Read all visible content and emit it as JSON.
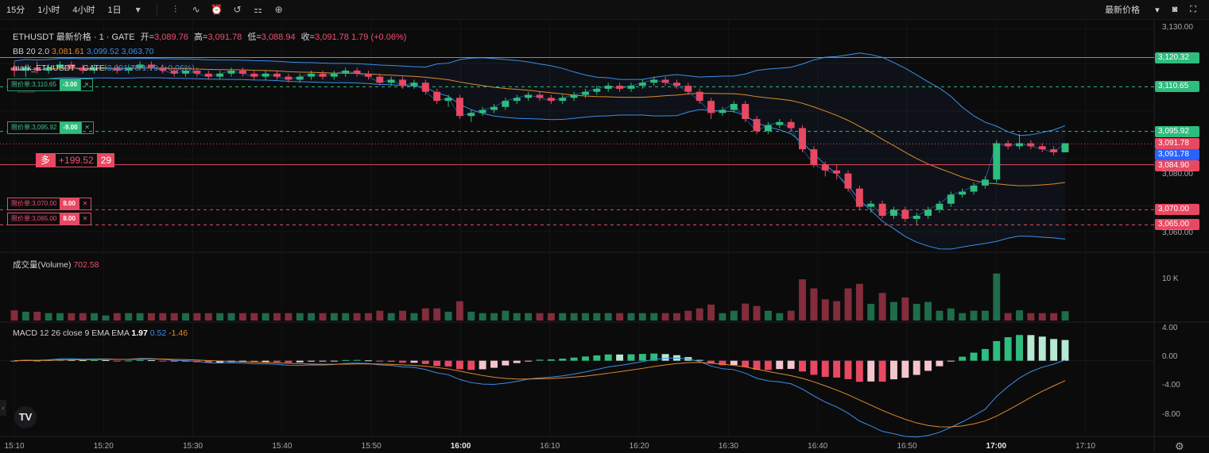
{
  "toolbar": {
    "timeframes": [
      "15分",
      "1小时",
      "4小时",
      "1日"
    ],
    "dropdown_icon": "chevron-down-icon",
    "tools": [
      "indicator-icon",
      "chart-style-icon",
      "alert-icon",
      "replay-icon",
      "compare-icon",
      "add-icon"
    ],
    "right": {
      "price_type": "最新价格",
      "camera": "camera-icon",
      "fullscreen": "fullscreen-icon"
    }
  },
  "legend": {
    "symbol": "ETHUSDT 最新价格 · 1 · GATE",
    "open_label": "开=",
    "open": "3,089.76",
    "high_label": "高=",
    "high": "3,091.78",
    "low_label": "低=",
    "low": "3,088.94",
    "close_label": "收=",
    "close": "3,091.78",
    "change": "1.79 (+0.06%)",
    "bb_label": "BB 20 2.0",
    "bb_mid": "3,081.61",
    "bb_upper": "3,099.52",
    "bb_lower": "3,063.70",
    "mark_label": "mark_ETHUSDT · GATE",
    "mark_value": "3,091.78",
    "mark_change": "1.79 (+0.06%)",
    "volume_label": "成交量(Volume)",
    "volume_value": "702.58",
    "macd_label": "MACD 12 26 close 9 EMA EMA",
    "macd_hist": "1.97",
    "macd_line": "0.52",
    "macd_signal": "-1.46"
  },
  "orders": [
    {
      "label": "限价单:3,110.65",
      "qty": "-3.00",
      "price": 3110.65,
      "color": "green"
    },
    {
      "label": "限价单:3,095.92",
      "qty": "-9.00",
      "price": 3095.92,
      "color": "green"
    },
    {
      "label": "限价单:3,070.00",
      "qty": "8.00",
      "price": 3070.0,
      "color": "red"
    },
    {
      "label": "限价单:3,065.00",
      "qty": "8.00",
      "price": 3065.0,
      "color": "red"
    }
  ],
  "position": {
    "side": "多",
    "pnl": "+199.52",
    "count": "29",
    "price": 3084.9
  },
  "price_labels": [
    {
      "text": "3,120.32",
      "price": 3120.32,
      "color": "#2ebd7e"
    },
    {
      "text": "3,110.65",
      "price": 3110.65,
      "color": "#2ebd7e"
    },
    {
      "text": "3,095.92",
      "price": 3095.92,
      "color": "#2ebd7e"
    },
    {
      "text": "3,091.78",
      "price": 3091.78,
      "color": "#e84862"
    },
    {
      "text": "3,091.78",
      "price": 3091.78,
      "color": "#2962ff"
    },
    {
      "text": "3,084.90",
      "price": 3084.9,
      "color": "#e84862"
    },
    {
      "text": "3,070.00",
      "price": 3070.0,
      "color": "#e84862"
    },
    {
      "text": "3,065.00",
      "price": 3065.0,
      "color": "#e84862"
    }
  ],
  "price_axis": [
    "3,130.00",
    "3,080.00",
    "3,060.00"
  ],
  "volume_axis": "10 K",
  "macd_axis": [
    "4.00",
    "0.00",
    "-4.00",
    "-8.00"
  ],
  "time_axis": [
    {
      "t": "15:10",
      "bold": false
    },
    {
      "t": "15:20",
      "bold": false
    },
    {
      "t": "15:30",
      "bold": false
    },
    {
      "t": "15:40",
      "bold": false
    },
    {
      "t": "15:50",
      "bold": false
    },
    {
      "t": "16:00",
      "bold": true
    },
    {
      "t": "16:10",
      "bold": false
    },
    {
      "t": "16:20",
      "bold": false
    },
    {
      "t": "16:30",
      "bold": false
    },
    {
      "t": "16:40",
      "bold": false
    },
    {
      "t": "16:50",
      "bold": false
    },
    {
      "t": "17:00",
      "bold": true
    },
    {
      "t": "17:10",
      "bold": false
    }
  ],
  "logo": "TV",
  "colors": {
    "up": "#2ebd7e",
    "down": "#e84862",
    "bb_mid": "#e08a2c",
    "bb_band": "#3c8ee8",
    "bg": "#0b0b0c"
  },
  "chart_data": {
    "type": "candlestick",
    "start_time": "15:10",
    "interval_min": 1,
    "y_range": [
      3057,
      3132
    ],
    "ohlc": [
      [
        3117,
        3119,
        3114,
        3116
      ],
      [
        3116,
        3118,
        3114,
        3117
      ],
      [
        3117,
        3119,
        3115,
        3116
      ],
      [
        3116,
        3118,
        3115,
        3117
      ],
      [
        3117,
        3119,
        3116,
        3118
      ],
      [
        3118,
        3119,
        3116,
        3117
      ],
      [
        3117,
        3118,
        3115,
        3116
      ],
      [
        3116,
        3118,
        3115,
        3117
      ],
      [
        3117,
        3118,
        3116,
        3117
      ],
      [
        3117,
        3118,
        3115,
        3116
      ],
      [
        3116,
        3118,
        3115,
        3117
      ],
      [
        3117,
        3119,
        3116,
        3118
      ],
      [
        3118,
        3119,
        3116,
        3117
      ],
      [
        3117,
        3118,
        3115,
        3116
      ],
      [
        3116,
        3117,
        3114,
        3115
      ],
      [
        3115,
        3117,
        3114,
        3116
      ],
      [
        3116,
        3117,
        3114,
        3115
      ],
      [
        3115,
        3116,
        3113,
        3114
      ],
      [
        3114,
        3116,
        3113,
        3115
      ],
      [
        3115,
        3117,
        3114,
        3116
      ],
      [
        3116,
        3117,
        3114,
        3115
      ],
      [
        3115,
        3116,
        3113,
        3114
      ],
      [
        3114,
        3116,
        3113,
        3115
      ],
      [
        3115,
        3116,
        3113,
        3114
      ],
      [
        3114,
        3115,
        3112,
        3113
      ],
      [
        3113,
        3115,
        3112,
        3114
      ],
      [
        3114,
        3116,
        3113,
        3115
      ],
      [
        3115,
        3116,
        3113,
        3114
      ],
      [
        3114,
        3116,
        3113,
        3115
      ],
      [
        3115,
        3117,
        3114,
        3116
      ],
      [
        3116,
        3117,
        3114,
        3115
      ],
      [
        3115,
        3116,
        3113,
        3114
      ],
      [
        3114,
        3115,
        3111,
        3112
      ],
      [
        3112,
        3114,
        3111,
        3113
      ],
      [
        3113,
        3114,
        3110,
        3111
      ],
      [
        3111,
        3113,
        3110,
        3112
      ],
      [
        3112,
        3113,
        3108,
        3109
      ],
      [
        3109,
        3110,
        3105,
        3106
      ],
      [
        3106,
        3108,
        3104,
        3107
      ],
      [
        3107,
        3108,
        3100,
        3101
      ],
      [
        3101,
        3103,
        3099,
        3102
      ],
      [
        3102,
        3104,
        3101,
        3103
      ],
      [
        3103,
        3105,
        3102,
        3104
      ],
      [
        3104,
        3107,
        3103,
        3106
      ],
      [
        3106,
        3108,
        3105,
        3107
      ],
      [
        3107,
        3109,
        3106,
        3108
      ],
      [
        3108,
        3109,
        3106,
        3107
      ],
      [
        3107,
        3108,
        3105,
        3106
      ],
      [
        3106,
        3108,
        3105,
        3107
      ],
      [
        3107,
        3109,
        3106,
        3108
      ],
      [
        3108,
        3110,
        3107,
        3109
      ],
      [
        3109,
        3111,
        3108,
        3110
      ],
      [
        3110,
        3112,
        3109,
        3111
      ],
      [
        3111,
        3112,
        3109,
        3110
      ],
      [
        3110,
        3112,
        3109,
        3111
      ],
      [
        3111,
        3113,
        3110,
        3112
      ],
      [
        3112,
        3114,
        3111,
        3113
      ],
      [
        3113,
        3114,
        3111,
        3112
      ],
      [
        3112,
        3113,
        3110,
        3111
      ],
      [
        3111,
        3112,
        3108,
        3109
      ],
      [
        3109,
        3110,
        3105,
        3106
      ],
      [
        3106,
        3107,
        3100,
        3102
      ],
      [
        3102,
        3104,
        3101,
        3103
      ],
      [
        3103,
        3106,
        3102,
        3105
      ],
      [
        3105,
        3106,
        3099,
        3100
      ],
      [
        3100,
        3101,
        3095,
        3096
      ],
      [
        3096,
        3099,
        3095,
        3098
      ],
      [
        3098,
        3100,
        3097,
        3099
      ],
      [
        3099,
        3100,
        3096,
        3097
      ],
      [
        3097,
        3098,
        3089,
        3090
      ],
      [
        3090,
        3091,
        3084,
        3085
      ],
      [
        3085,
        3086,
        3081,
        3083
      ],
      [
        3083,
        3085,
        3080,
        3082
      ],
      [
        3082,
        3083,
        3076,
        3077
      ],
      [
        3077,
        3078,
        3070,
        3071
      ],
      [
        3071,
        3073,
        3069,
        3072
      ],
      [
        3072,
        3073,
        3067,
        3068
      ],
      [
        3068,
        3071,
        3067,
        3070
      ],
      [
        3070,
        3071,
        3066,
        3067
      ],
      [
        3067,
        3069,
        3065,
        3068
      ],
      [
        3068,
        3071,
        3067,
        3070
      ],
      [
        3070,
        3073,
        3069,
        3072
      ],
      [
        3072,
        3076,
        3071,
        3075
      ],
      [
        3075,
        3077,
        3074,
        3076
      ],
      [
        3076,
        3079,
        3075,
        3078
      ],
      [
        3078,
        3081,
        3077,
        3080
      ],
      [
        3080,
        3093,
        3079,
        3092
      ],
      [
        3092,
        3093,
        3090,
        3091
      ],
      [
        3091,
        3095,
        3090,
        3092
      ],
      [
        3092,
        3093,
        3090,
        3091
      ],
      [
        3091,
        3092,
        3089,
        3090
      ],
      [
        3090,
        3091,
        3088,
        3089
      ],
      [
        3089,
        3092,
        3089,
        3092
      ]
    ],
    "volume_axis_max": 12000,
    "macd_range": [
      -10,
      5
    ]
  }
}
